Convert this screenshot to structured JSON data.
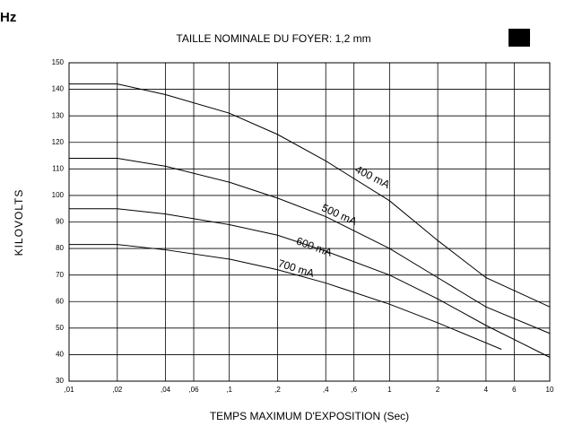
{
  "chart_data": {
    "type": "line",
    "corner_text": "Hz",
    "title": "TAILLE NOMINALE DU FOYER: 1,2 mm",
    "xlabel": "TEMPS MAXIMUM D'EXPOSITION (Sec)",
    "ylabel": "KILOVOLTS",
    "xscale": "log",
    "grid": true,
    "xlim": [
      0.01,
      10
    ],
    "ylim": [
      30,
      150
    ],
    "xticks": [
      {
        "value": 0.01,
        "label": ",01"
      },
      {
        "value": 0.02,
        "label": ",02"
      },
      {
        "value": 0.04,
        "label": ",04"
      },
      {
        "value": 0.06,
        "label": ",06"
      },
      {
        "value": 0.1,
        "label": ",1"
      },
      {
        "value": 0.2,
        "label": ",2"
      },
      {
        "value": 0.4,
        "label": ",4"
      },
      {
        "value": 0.6,
        "label": ",6"
      },
      1,
      2,
      4,
      6,
      10
    ],
    "yticks": [
      30,
      40,
      50,
      60,
      70,
      80,
      90,
      100,
      110,
      120,
      130,
      140,
      150
    ],
    "color": "#000000",
    "series": [
      {
        "name": "400 mA",
        "x": [
          0.01,
          0.02,
          0.04,
          0.1,
          0.2,
          0.4,
          1,
          2,
          4,
          10
        ],
        "values": [
          142,
          142,
          138,
          131,
          123,
          113,
          98,
          83,
          69,
          58
        ]
      },
      {
        "name": "500 mA",
        "x": [
          0.01,
          0.02,
          0.04,
          0.1,
          0.2,
          0.4,
          1,
          2,
          4,
          10
        ],
        "values": [
          114,
          114,
          111,
          105,
          99,
          92,
          80,
          69,
          58,
          48
        ]
      },
      {
        "name": "600 mA",
        "x": [
          0.01,
          0.02,
          0.04,
          0.1,
          0.2,
          0.4,
          1,
          2,
          4,
          10
        ],
        "values": [
          95,
          95,
          93,
          89,
          85,
          79,
          70,
          61,
          51,
          39
        ]
      },
      {
        "name": "700 mA",
        "x": [
          0.01,
          0.02,
          0.04,
          0.1,
          0.2,
          0.4,
          1,
          2,
          5
        ],
        "values": [
          81.5,
          81.5,
          79.5,
          76,
          72,
          67,
          59,
          52,
          42
        ]
      }
    ]
  }
}
